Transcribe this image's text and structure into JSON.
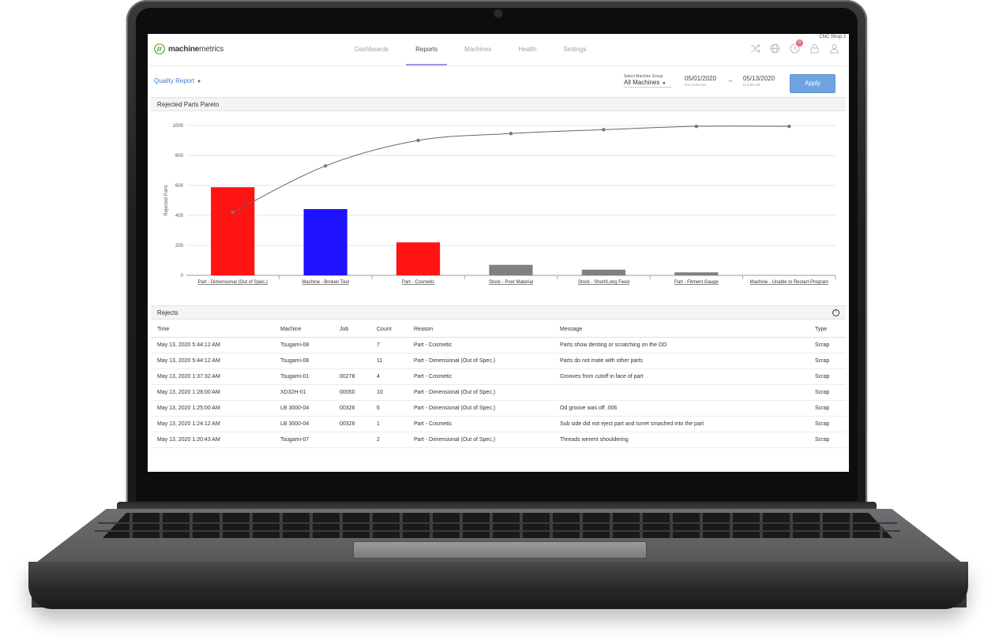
{
  "header": {
    "logo_bold": "machine",
    "logo_light": "metrics",
    "shop": "CNC Shop 2",
    "notification_count": "0",
    "tabs": [
      {
        "label": "Dashboards"
      },
      {
        "label": "Reports"
      },
      {
        "label": "Machines"
      },
      {
        "label": "Health"
      },
      {
        "label": "Settings"
      }
    ]
  },
  "toolbar": {
    "report": "Quality Report",
    "group_label": "Select Machine Group",
    "group_value": "All Machines",
    "date_from": "05/01/2020",
    "date_from_sub": "from 6:00 AM",
    "date_to": "05/13/2020",
    "date_to_sub": "to 6:00 AM",
    "apply_label": "Apply"
  },
  "chart_panel": {
    "title": "Rejected Parts Pareto"
  },
  "chart_data": {
    "type": "bar",
    "categories": [
      "Part - Dimensional (Out of Spec.)",
      "Machine - Broken Tool",
      "Part - Cosmetic",
      "Stock - Poor Material",
      "Stock - Short/Long Feed",
      "Part - Fitment Gauge",
      "Machine - Unable to Restart Program"
    ],
    "values": [
      588,
      442,
      220,
      70,
      38,
      20,
      0
    ],
    "colors": [
      "#ff1313",
      "#1f13ff",
      "#ff1313",
      "#808080",
      "#808080",
      "#808080",
      "#808080"
    ],
    "cumulative_line": [
      420,
      730,
      900,
      946,
      972,
      994,
      994
    ],
    "ylabel": "Rejected Parts",
    "ylim": [
      0,
      1000
    ],
    "yticks": [
      0,
      200,
      400,
      600,
      800,
      1000
    ],
    "grid": true
  },
  "rejects": {
    "title": "Rejects",
    "columns": [
      "Time",
      "Machine",
      "Job",
      "Count",
      "Reason",
      "Message",
      "Type"
    ],
    "rows": [
      [
        "May 13, 2020 5:44:12 AM",
        "Tsugami-08",
        "",
        "7",
        "Part - Cosmetic",
        "Parts show denting or scratching on the OD",
        "Scrap"
      ],
      [
        "May 13, 2020 5:44:12 AM",
        "Tsugami-08",
        "",
        "11",
        "Part - Dimensional (Out of Spec.)",
        "Parts do not mate with other parts",
        "Scrap"
      ],
      [
        "May 13, 2020 1:37:32 AM",
        "Tsugami-01",
        "00278",
        "4",
        "Part - Cosmetic",
        "Grooves from cutoff in face of part",
        "Scrap"
      ],
      [
        "May 13, 2020 1:28:00 AM",
        "XD32H-01",
        "00050",
        "10",
        "Part - Dimensional (Out of Spec.)",
        "",
        "Scrap"
      ],
      [
        "May 13, 2020 1:25:00 AM",
        "LB 3000-04",
        "00326",
        "6",
        "Part - Dimensional (Out of Spec.)",
        "Od groove was off .006",
        "Scrap"
      ],
      [
        "May 13, 2020 1:24:12 AM",
        "LB 3000-04",
        "00326",
        "1",
        "Part - Cosmetic",
        "Sub side did not eject part and turret smashed into the part",
        "Scrap"
      ],
      [
        "May 13, 2020 1:20:43 AM",
        "Tsugami-07",
        "",
        "2",
        "Part - Dimensional (Out of Spec.)",
        "Threads werent shouldering",
        "Scrap"
      ]
    ]
  }
}
